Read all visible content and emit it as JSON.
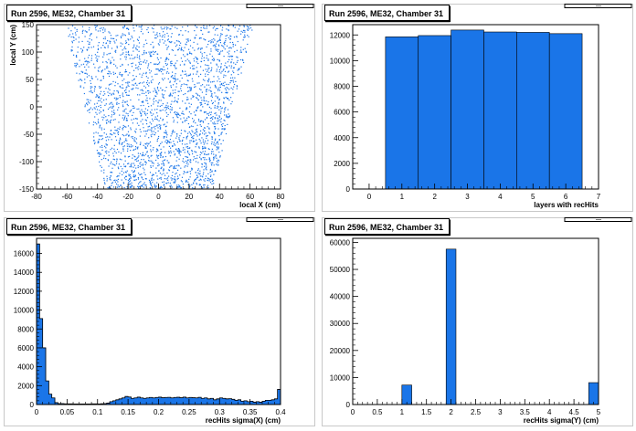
{
  "colors": {
    "fill": "#1a75e8",
    "stroke": "#000000",
    "frame": "#c8c8c8"
  },
  "chart_data": [
    {
      "type": "scatter",
      "title": "Run 2596, ME32, Chamber 31",
      "xlabel": "local X (cm)",
      "ylabel": "local Y (cm)",
      "xlim": [
        -80,
        80
      ],
      "ylim": [
        -150,
        150
      ],
      "xticks": [
        -80,
        -60,
        -40,
        -20,
        0,
        20,
        40,
        60,
        80
      ],
      "yticks": [
        -150,
        -100,
        -50,
        0,
        50,
        100,
        150
      ],
      "region_top": {
        "y": 150,
        "xmin": -62,
        "xmax": 62
      },
      "region_bottom": {
        "y": -150,
        "xmin": -35,
        "xmax": 35
      }
    },
    {
      "type": "bar",
      "title": "Run 2596, ME32, Chamber 31",
      "xlabel": "layers with recHits",
      "ylabel": "",
      "categories": [
        1,
        2,
        3,
        4,
        5,
        6
      ],
      "values": [
        11850,
        11950,
        12380,
        12230,
        12200,
        12100
      ],
      "xlim": [
        -0.5,
        7
      ],
      "ylim": [
        0,
        12800
      ],
      "xticks": [
        0,
        1,
        2,
        3,
        4,
        5,
        6,
        7
      ],
      "yticks": [
        0,
        2000,
        4000,
        6000,
        8000,
        10000,
        12000
      ]
    },
    {
      "type": "bar",
      "title": "Run 2596, ME32, Chamber 31",
      "xlabel": "recHits sigma(X) (cm)",
      "ylabel": "",
      "bin_width": 0.005,
      "x_start": 0,
      "values": [
        17000,
        9100,
        6000,
        2500,
        1100,
        700,
        200,
        100,
        100,
        70,
        70,
        70,
        60,
        60,
        60,
        60,
        60,
        60,
        70,
        70,
        60,
        80,
        100,
        150,
        300,
        400,
        500,
        600,
        700,
        850,
        800,
        650,
        700,
        780,
        700,
        650,
        700,
        750,
        700,
        750,
        780,
        720,
        750,
        760,
        700,
        750,
        770,
        720,
        780,
        700,
        750,
        720,
        700,
        760,
        650,
        700,
        600,
        650,
        500,
        600,
        700,
        650,
        600,
        620,
        550,
        450,
        500,
        350,
        400,
        300,
        350,
        250,
        300,
        250,
        350,
        450,
        450,
        500,
        600,
        1600
      ],
      "xlim": [
        0,
        0.4
      ],
      "ylim": [
        0,
        17600
      ],
      "xticks": [
        0,
        0.05,
        0.1,
        0.15,
        0.2,
        0.25,
        0.3,
        0.35,
        0.4
      ],
      "yticks": [
        0,
        2000,
        4000,
        6000,
        8000,
        10000,
        12000,
        14000,
        16000
      ]
    },
    {
      "type": "bar",
      "title": "Run 2596, ME32, Chamber 31",
      "xlabel": "recHits sigma(Y) (cm)",
      "ylabel": "",
      "bins": [
        [
          1.0,
          1.2,
          7200
        ],
        [
          1.9,
          2.1,
          57500
        ],
        [
          4.8,
          5.0,
          8100
        ]
      ],
      "xlim": [
        0,
        5
      ],
      "ylim": [
        0,
        61500
      ],
      "xticks": [
        0,
        0.5,
        1,
        1.5,
        2,
        2.5,
        3,
        3.5,
        4,
        4.5,
        5
      ],
      "yticks": [
        0,
        10000,
        20000,
        30000,
        40000,
        50000,
        60000
      ]
    }
  ]
}
